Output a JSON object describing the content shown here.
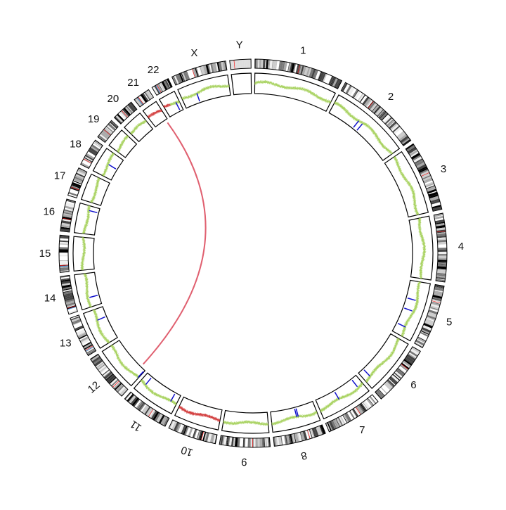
{
  "chromosomes": [
    {
      "name": "1",
      "length": 249,
      "centromere": 125,
      "track": "green"
    },
    {
      "name": "2",
      "length": 243,
      "centromere": 93,
      "track": "green"
    },
    {
      "name": "3",
      "length": 198,
      "centromere": 91,
      "track": "green"
    },
    {
      "name": "4",
      "length": 191,
      "centromere": 50,
      "track": "green"
    },
    {
      "name": "5",
      "length": 181,
      "centromere": 48,
      "track": "green"
    },
    {
      "name": "6",
      "length": 171,
      "centromere": 60,
      "track": "green"
    },
    {
      "name": "7",
      "length": 159,
      "centromere": 60,
      "track": "green"
    },
    {
      "name": "8",
      "length": 146,
      "centromere": 45,
      "track": "green"
    },
    {
      "name": "9",
      "length": 141,
      "centromere": 49,
      "track": "green"
    },
    {
      "name": "10",
      "length": 136,
      "centromere": 40,
      "track": "red"
    },
    {
      "name": "11",
      "length": 135,
      "centromere": 53,
      "track": "green"
    },
    {
      "name": "12",
      "length": 134,
      "centromere": 35,
      "track": "green"
    },
    {
      "name": "13",
      "length": 115,
      "centromere": 17,
      "track": "green"
    },
    {
      "name": "14",
      "length": 107,
      "centromere": 17,
      "track": "green"
    },
    {
      "name": "15",
      "length": 103,
      "centromere": 19,
      "track": "green"
    },
    {
      "name": "16",
      "length": 90,
      "centromere": 36,
      "track": "green"
    },
    {
      "name": "17",
      "length": 81,
      "centromere": 24,
      "track": "green"
    },
    {
      "name": "18",
      "length": 78,
      "centromere": 17,
      "track": "green"
    },
    {
      "name": "19",
      "length": 59,
      "centromere": 26,
      "track": "green"
    },
    {
      "name": "20",
      "length": 63,
      "centromere": 28,
      "track": "green"
    },
    {
      "name": "21",
      "length": 48,
      "centromere": 13,
      "track": "red"
    },
    {
      "name": "22",
      "length": 51,
      "centromere": 15,
      "track": "mixed"
    },
    {
      "name": "X",
      "length": 155,
      "centromere": 60,
      "track": "green"
    },
    {
      "name": "Y",
      "length": 59,
      "centromere": 12,
      "track": "none"
    }
  ],
  "blue_marks": [
    {
      "chr": "2",
      "pos": 95
    },
    {
      "chr": "2",
      "pos": 110
    },
    {
      "chr": "5",
      "pos": 60
    },
    {
      "chr": "5",
      "pos": 95
    },
    {
      "chr": "5",
      "pos": 150
    },
    {
      "chr": "6",
      "pos": 150
    },
    {
      "chr": "7",
      "pos": 20
    },
    {
      "chr": "7",
      "pos": 90
    },
    {
      "chr": "8",
      "pos": 60
    },
    {
      "chr": "8",
      "pos": 65
    },
    {
      "chr": "11",
      "pos": 20
    },
    {
      "chr": "11",
      "pos": 115
    },
    {
      "chr": "12",
      "pos": 2
    },
    {
      "chr": "13",
      "pos": 80
    },
    {
      "chr": "14",
      "pos": 30
    },
    {
      "chr": "16",
      "pos": 75
    },
    {
      "chr": "18",
      "pos": 40
    },
    {
      "chr": "22",
      "pos": 40
    },
    {
      "chr": "X",
      "pos": 50
    }
  ],
  "link": {
    "from": {
      "chr": "21",
      "pos": 42
    },
    "to": {
      "chr": "12",
      "pos": 20
    },
    "color": "#e06070"
  },
  "colors": {
    "green": "#9ccc4a",
    "red": "#cc2222",
    "blue": "#1010cc",
    "centromere": "#ff0000",
    "stalk": "#4a8ac8"
  }
}
